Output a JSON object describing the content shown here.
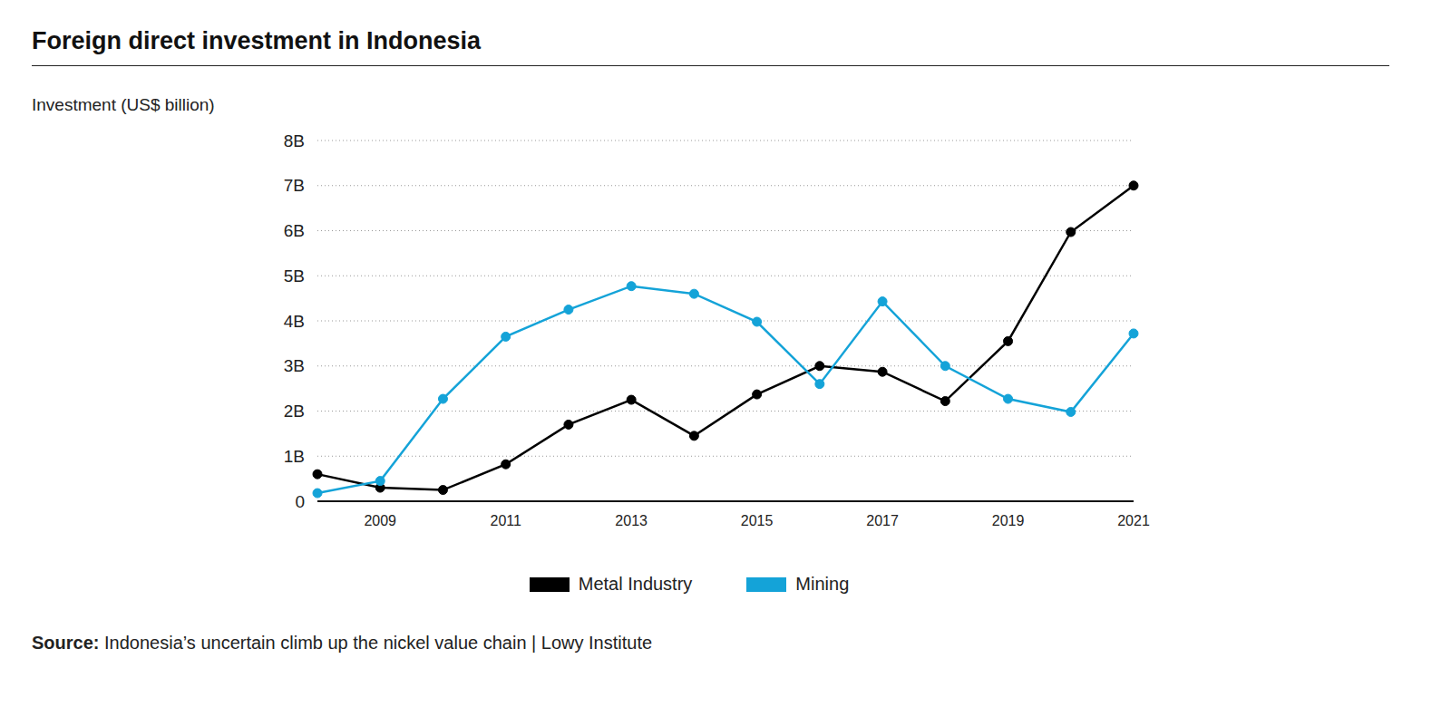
{
  "chart_data": {
    "type": "line",
    "title": "Foreign direct investment in Indonesia",
    "y_label": "Investment (US$ billion)",
    "source_label": "Source:",
    "source": "Indonesia’s uncertain climb up the nickel value chain | Lowy Institute",
    "categories": [
      null,
      "2009",
      null,
      "2011",
      null,
      "2013",
      null,
      "2015",
      null,
      "2017",
      null,
      "2019",
      null,
      "2021"
    ],
    "series": [
      {
        "name": "Metal Industry",
        "color": "#000000",
        "marker": "circle",
        "values": [
          0.6,
          0.3,
          0.25,
          0.82,
          1.7,
          2.25,
          1.45,
          2.37,
          3.0,
          2.87,
          2.22,
          3.55,
          5.97,
          7.0
        ]
      },
      {
        "name": "Mining",
        "color": "#14a3d8",
        "marker": "circle",
        "values": [
          0.18,
          0.45,
          2.27,
          3.65,
          4.25,
          4.77,
          4.6,
          3.98,
          2.6,
          4.43,
          3.0,
          2.27,
          1.98,
          3.72
        ]
      }
    ],
    "ylim": [
      0,
      8
    ],
    "yticks": [
      0,
      {
        "value": 1,
        "label": "1B"
      },
      {
        "value": 2,
        "label": "2B"
      },
      {
        "value": 3,
        "label": "3B"
      },
      {
        "value": 4,
        "label": "4B"
      },
      {
        "value": 5,
        "label": "5B"
      },
      {
        "value": 6,
        "label": "6B"
      },
      {
        "value": 7,
        "label": "7B"
      },
      {
        "value": 8,
        "label": "8B"
      }
    ],
    "grid": true
  }
}
